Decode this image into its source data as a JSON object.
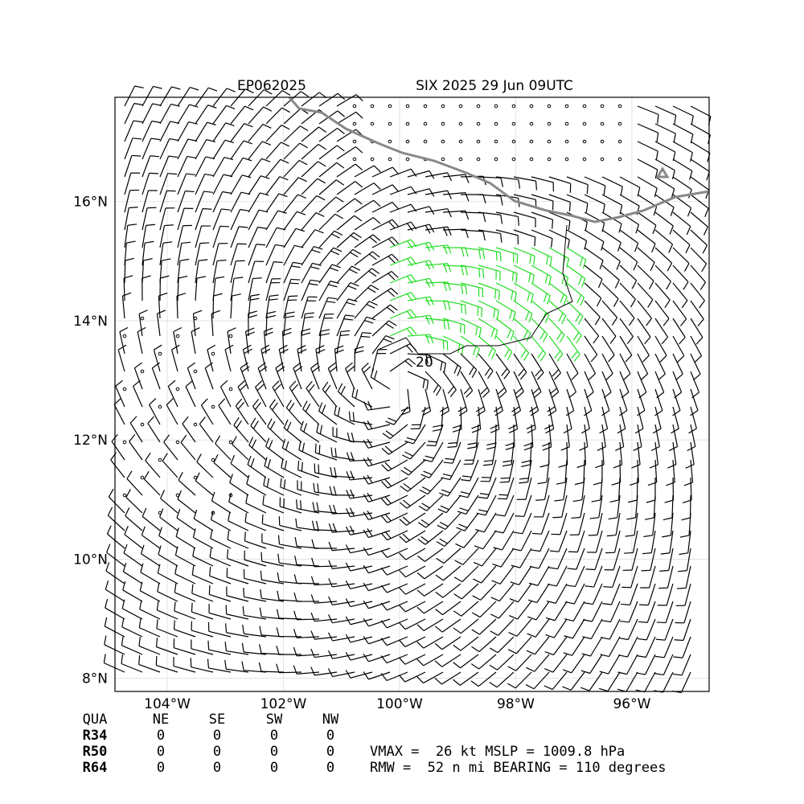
{
  "map": {
    "title_left": "EP062025",
    "title_right": "SIX 2025 29 Jun 09UTC",
    "xlim": [
      -104.9,
      -94.67
    ],
    "ylim": [
      7.78,
      17.75
    ],
    "xticks": [
      {
        "value": -104,
        "label": "104°W"
      },
      {
        "value": -102,
        "label": "102°W"
      },
      {
        "value": -100,
        "label": "100°W"
      },
      {
        "value": -98,
        "label": "98°W"
      },
      {
        "value": -96,
        "label": "96°W"
      }
    ],
    "yticks": [
      {
        "value": 8,
        "label": "8°N"
      },
      {
        "value": 10,
        "label": "10°N"
      },
      {
        "value": 12,
        "label": "12°N"
      },
      {
        "value": 14,
        "label": "14°N"
      },
      {
        "value": 16,
        "label": "16°N"
      }
    ],
    "contour_label": "20"
  },
  "table": {
    "header": [
      "QUA",
      "NE",
      "SE",
      "SW",
      "NW"
    ],
    "rows": [
      [
        "R34",
        "0",
        "0",
        "0",
        "0"
      ],
      [
        "R50",
        "0",
        "0",
        "0",
        "0"
      ],
      [
        "R64",
        "0",
        "0",
        "0",
        "0"
      ]
    ]
  },
  "info": [
    "VMAX =  26 kt MSLP = 1009.8 hPa",
    "RMW =  52 n mi BEARING = 110 degrees"
  ]
}
